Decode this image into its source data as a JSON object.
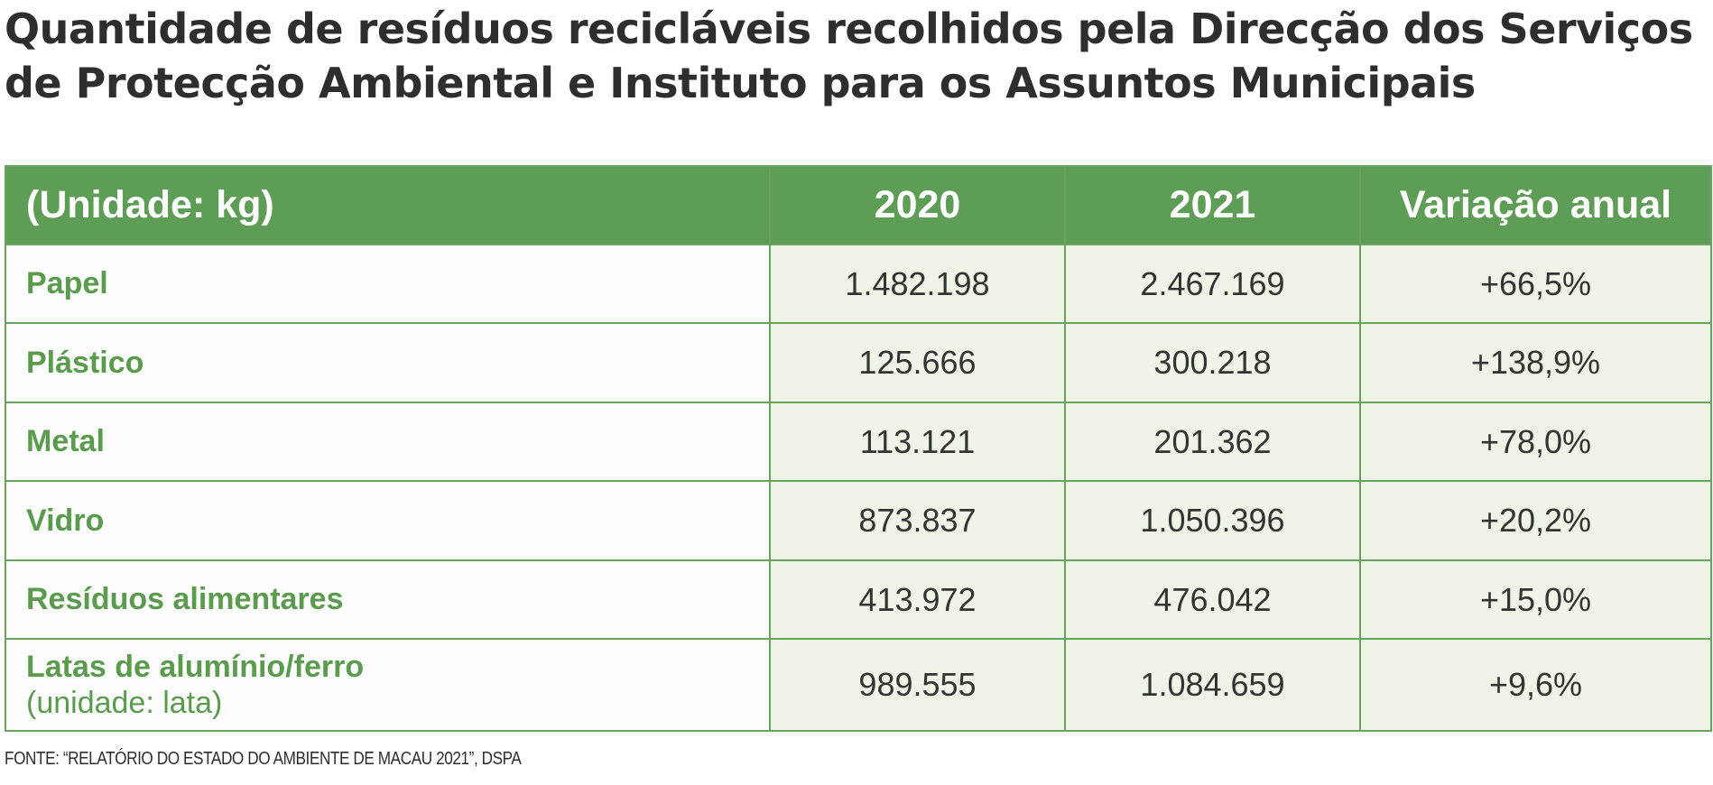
{
  "title": {
    "line1": "Quantidade de resíduos recicláveis recolhidos pela Direcção dos Serviços",
    "line2": "de Protecção Ambiental e Instituto para os Assuntos Municipais"
  },
  "table": {
    "headers": [
      "(Unidade: kg)",
      "2020",
      "2021",
      "Variação anual"
    ],
    "rows": [
      {
        "label": "Papel",
        "sublabel": "",
        "v2020": "1.482.198",
        "v2021": "2.467.169",
        "change": "+66,5%"
      },
      {
        "label": "Plástico",
        "sublabel": "",
        "v2020": "125.666",
        "v2021": "300.218",
        "change": "+138,9%"
      },
      {
        "label": "Metal",
        "sublabel": "",
        "v2020": "113.121",
        "v2021": "201.362",
        "change": "+78,0%"
      },
      {
        "label": "Vidro",
        "sublabel": "",
        "v2020": "873.837",
        "v2021": "1.050.396",
        "change": "+20,2%"
      },
      {
        "label": "Resíduos alimentares",
        "sublabel": "",
        "v2020": "413.972",
        "v2021": "476.042",
        "change": "+15,0%"
      },
      {
        "label": "Latas de alumínio/ferro",
        "sublabel": "(unidade: lata)",
        "v2020": "989.555",
        "v2021": "1.084.659",
        "change": "+9,6%"
      }
    ]
  },
  "source": "FONTE: “RELATÓRIO DO ESTADO DO AMBIENTE DE MACAU 2021”, DSPA",
  "colors": {
    "header_bg": "#5d9d55",
    "label_text": "#5a9b4e",
    "value_cell_bg": "#f0f4e6",
    "border": "#6aa25f"
  }
}
